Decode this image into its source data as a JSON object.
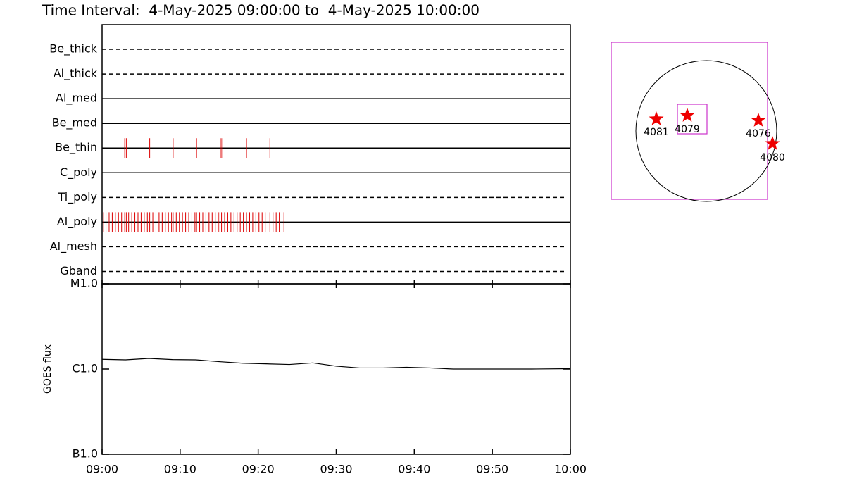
{
  "chart_data": {
    "type": "timeline",
    "title": "Time Interval:  4-May-2025 09:00:00 to  4-May-2025 10:00:00",
    "xlim": [
      0,
      60
    ],
    "xticks": [
      {
        "value": 0,
        "label": "09:00"
      },
      {
        "value": 10,
        "label": "09:10"
      },
      {
        "value": 20,
        "label": "09:20"
      },
      {
        "value": 30,
        "label": "09:30"
      },
      {
        "value": 40,
        "label": "09:40"
      },
      {
        "value": 50,
        "label": "09:50"
      },
      {
        "value": 60,
        "label": "10:00"
      }
    ],
    "obs_color": "#dd0000",
    "filters": [
      {
        "name": "Be_thick",
        "style": "dashed",
        "observations": []
      },
      {
        "name": "Al_thick",
        "style": "dashed",
        "observations": []
      },
      {
        "name": "Al_med",
        "style": "solid",
        "observations": []
      },
      {
        "name": "Be_med",
        "style": "solid",
        "observations": []
      },
      {
        "name": "Be_thin",
        "style": "solid",
        "observations": [
          2.9,
          3.1,
          6.1,
          9.1,
          12.1,
          15.25,
          15.45,
          18.5,
          21.5
        ]
      },
      {
        "name": "C_poly",
        "style": "solid",
        "observations": []
      },
      {
        "name": "Ti_poly",
        "style": "dashed",
        "observations": []
      },
      {
        "name": "Al_poly",
        "style": "solid",
        "observations": [
          0.2,
          0.5,
          0.9,
          1.3,
          1.7,
          2.1,
          2.5,
          2.9,
          3.1,
          3.4,
          3.8,
          4.2,
          4.6,
          5.0,
          5.4,
          5.8,
          6.1,
          6.5,
          6.9,
          7.3,
          7.7,
          8.1,
          8.5,
          8.9,
          9.1,
          9.5,
          9.9,
          10.3,
          10.7,
          11.1,
          11.5,
          11.9,
          12.1,
          12.5,
          12.9,
          13.3,
          13.7,
          14.1,
          14.5,
          14.9,
          15.1,
          15.3,
          15.7,
          16.1,
          16.5,
          16.9,
          17.3,
          17.7,
          18.1,
          18.5,
          18.9,
          19.3,
          19.7,
          20.1,
          20.5,
          20.9,
          21.5,
          21.9,
          22.3,
          22.7,
          23.3
        ]
      },
      {
        "name": "Al_mesh",
        "style": "dashed",
        "observations": []
      },
      {
        "name": "Gband",
        "style": "dashed",
        "observations": []
      }
    ],
    "goes": {
      "type": "line",
      "ylabel": "GOES flux",
      "log_scale": true,
      "color": "#000000",
      "ylim": [
        1e-07,
        1e-05
      ],
      "yticks": [
        {
          "value": 1e-07,
          "label": "B1.0"
        },
        {
          "value": 1e-06,
          "label": "C1.0"
        },
        {
          "value": 1e-05,
          "label": "M1.0"
        }
      ],
      "x": [
        0,
        3,
        6,
        9,
        12,
        15,
        18,
        21,
        24,
        27,
        30,
        33,
        36,
        39,
        42,
        45,
        50,
        55,
        60
      ],
      "values": [
        1.3e-06,
        1.28e-06,
        1.33e-06,
        1.29e-06,
        1.28e-06,
        1.22e-06,
        1.17e-06,
        1.15e-06,
        1.13e-06,
        1.18e-06,
        1.08e-06,
        1.03e-06,
        1.03e-06,
        1.05e-06,
        1.03e-06,
        1e-06,
        1e-06,
        1e-06,
        1.01e-06
      ]
    }
  },
  "map": {
    "regions": [
      {
        "label": "4081"
      },
      {
        "label": "4079"
      },
      {
        "label": "4076"
      },
      {
        "label": "4080"
      }
    ]
  }
}
